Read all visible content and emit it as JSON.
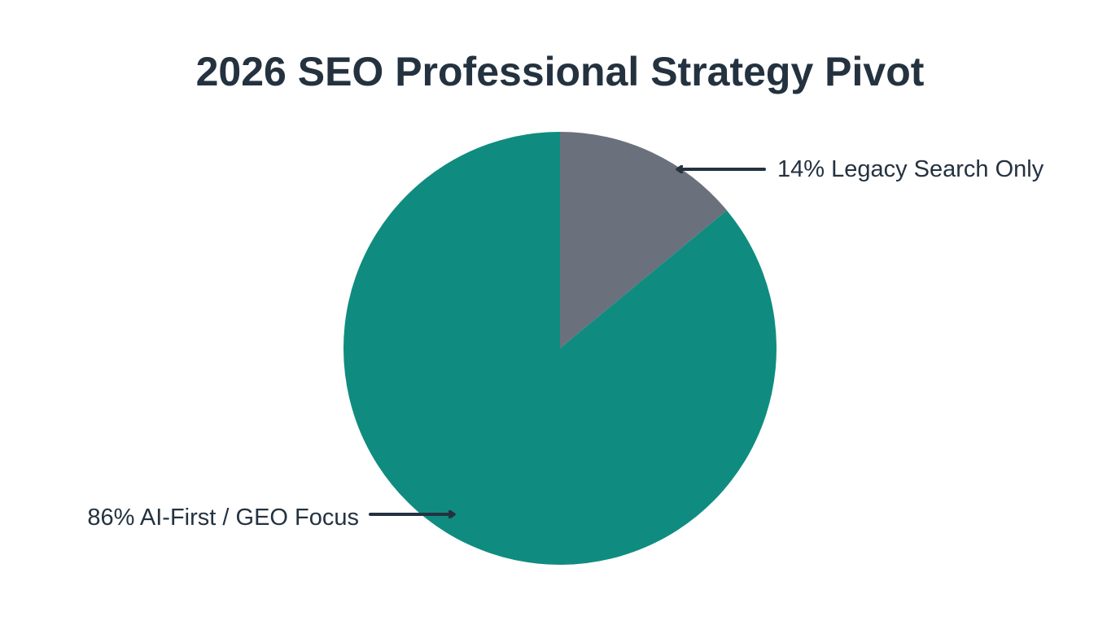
{
  "chart_data": {
    "type": "pie",
    "title": "2026 SEO Professional Strategy Pivot",
    "categories": [
      "Legacy Search Only",
      "AI-First / GEO Focus"
    ],
    "values": [
      14,
      86
    ],
    "unit": "%",
    "labels": [
      "14% Legacy Search Only",
      "86% AI-First / GEO Focus"
    ],
    "colors": [
      "#6a717c",
      "#0f8c7f"
    ],
    "start_angle_deg": 0,
    "direction": "clockwise",
    "annotation_color": "#243240",
    "legend": "none"
  }
}
